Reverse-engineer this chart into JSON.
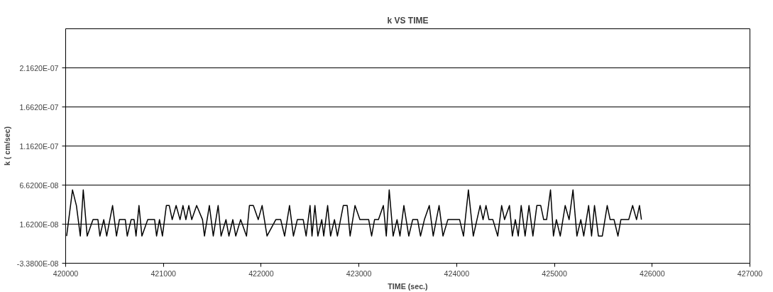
{
  "chart_data": {
    "type": "line",
    "title": "k VS TIME",
    "xlabel": "TIME (sec.)",
    "ylabel": "k ( cm/sec)",
    "xlim": [
      420000,
      427000
    ],
    "xticks": [
      420000,
      421000,
      422000,
      423000,
      424000,
      425000,
      426000,
      427000
    ],
    "ylim": [
      -3.38e-08,
      2.662e-07
    ],
    "yticks": [
      {
        "value": -3.38e-08,
        "label": "-3.3800E-08"
      },
      {
        "value": 1.62e-08,
        "label": "1.6200E-08"
      },
      {
        "value": 6.62e-08,
        "label": "6.6200E-08"
      },
      {
        "value": 1.162e-07,
        "label": "1.1620E-07"
      },
      {
        "value": 1.662e-07,
        "label": "1.6620E-07"
      },
      {
        "value": 2.162e-07,
        "label": "2.1620E-07"
      }
    ],
    "grid": "y",
    "marker": "none",
    "line_style": "solid",
    "series": [
      {
        "color": "#000000",
        "x": [
          420010,
          420070,
          420110,
          420150,
          420180,
          420220,
          420280,
          420330,
          420350,
          420390,
          420420,
          420480,
          420520,
          420550,
          420610,
          420630,
          420670,
          420700,
          420720,
          420750,
          420780,
          420840,
          420910,
          420930,
          420960,
          420990,
          421030,
          421060,
          421090,
          421130,
          421170,
          421200,
          421230,
          421260,
          421290,
          421340,
          421400,
          421420,
          421470,
          421510,
          421560,
          421590,
          421640,
          421670,
          421710,
          421740,
          421790,
          421850,
          421880,
          421920,
          421970,
          422010,
          422060,
          422150,
          422200,
          422240,
          422290,
          422330,
          422370,
          422430,
          422460,
          422500,
          422520,
          422550,
          422580,
          422620,
          422640,
          422680,
          422710,
          422750,
          422780,
          422840,
          422880,
          422910,
          422960,
          423010,
          423100,
          423130,
          423160,
          423200,
          423250,
          423280,
          423310,
          423350,
          423390,
          423420,
          423460,
          423510,
          423550,
          423600,
          423630,
          423670,
          423720,
          423760,
          423820,
          423860,
          423910,
          424030,
          424070,
          424120,
          424170,
          424240,
          424270,
          424300,
          424330,
          424370,
          424420,
          424460,
          424490,
          424540,
          424570,
          424600,
          424630,
          424660,
          424700,
          424740,
          424780,
          424820,
          424860,
          424890,
          424920,
          424960,
          424990,
          425020,
          425060,
          425110,
          425150,
          425190,
          425230,
          425270,
          425300,
          425350,
          425380,
          425410,
          425450,
          425490,
          425540,
          425570,
          425610,
          425650,
          425680,
          425760,
          425800,
          425840,
          425870,
          425890
        ],
        "values": [
          1e-09,
          6e-08,
          4e-08,
          1e-09,
          6e-08,
          1e-09,
          2.2e-08,
          2.2e-08,
          1e-09,
          2.2e-08,
          1e-09,
          4e-08,
          1e-09,
          2.2e-08,
          2.2e-08,
          1e-09,
          2.2e-08,
          2.2e-08,
          1e-09,
          4e-08,
          1e-09,
          2.2e-08,
          2.2e-08,
          1e-09,
          2.2e-08,
          1e-09,
          4e-08,
          4e-08,
          2.2e-08,
          4e-08,
          2.2e-08,
          4e-08,
          2.2e-08,
          4e-08,
          2.2e-08,
          4e-08,
          2.2e-08,
          1e-09,
          4e-08,
          1e-09,
          4e-08,
          1e-09,
          2.2e-08,
          1e-09,
          2.2e-08,
          1e-09,
          2.2e-08,
          1e-09,
          4e-08,
          4e-08,
          2.2e-08,
          4e-08,
          1e-09,
          2.2e-08,
          2.2e-08,
          1e-09,
          4e-08,
          1e-09,
          2.2e-08,
          2.2e-08,
          1e-09,
          4e-08,
          1e-09,
          4e-08,
          1e-09,
          2.2e-08,
          1e-09,
          4e-08,
          1e-09,
          2.2e-08,
          1e-09,
          4e-08,
          4e-08,
          1e-09,
          4e-08,
          2.2e-08,
          2.2e-08,
          1e-09,
          2.2e-08,
          2.2e-08,
          4e-08,
          1e-09,
          6e-08,
          1e-09,
          2.2e-08,
          1e-09,
          4e-08,
          1e-09,
          2.2e-08,
          2.2e-08,
          1e-09,
          2.2e-08,
          4e-08,
          1e-09,
          4e-08,
          1e-09,
          2.2e-08,
          2.2e-08,
          1e-09,
          6e-08,
          1e-09,
          4e-08,
          2.2e-08,
          4e-08,
          2.2e-08,
          2.2e-08,
          1e-09,
          4e-08,
          2.2e-08,
          4e-08,
          1e-09,
          2.2e-08,
          1e-09,
          4e-08,
          1e-09,
          4e-08,
          1e-09,
          4e-08,
          4e-08,
          2.2e-08,
          2.2e-08,
          6e-08,
          1e-09,
          2.2e-08,
          1e-09,
          4e-08,
          2.2e-08,
          6e-08,
          1e-09,
          2.2e-08,
          1e-09,
          4e-08,
          1e-09,
          4e-08,
          1e-09,
          1e-09,
          4e-08,
          2.2e-08,
          2.2e-08,
          1e-09,
          2.2e-08,
          2.2e-08,
          4e-08,
          2.2e-08,
          4e-08,
          2.2e-08
        ]
      }
    ]
  }
}
